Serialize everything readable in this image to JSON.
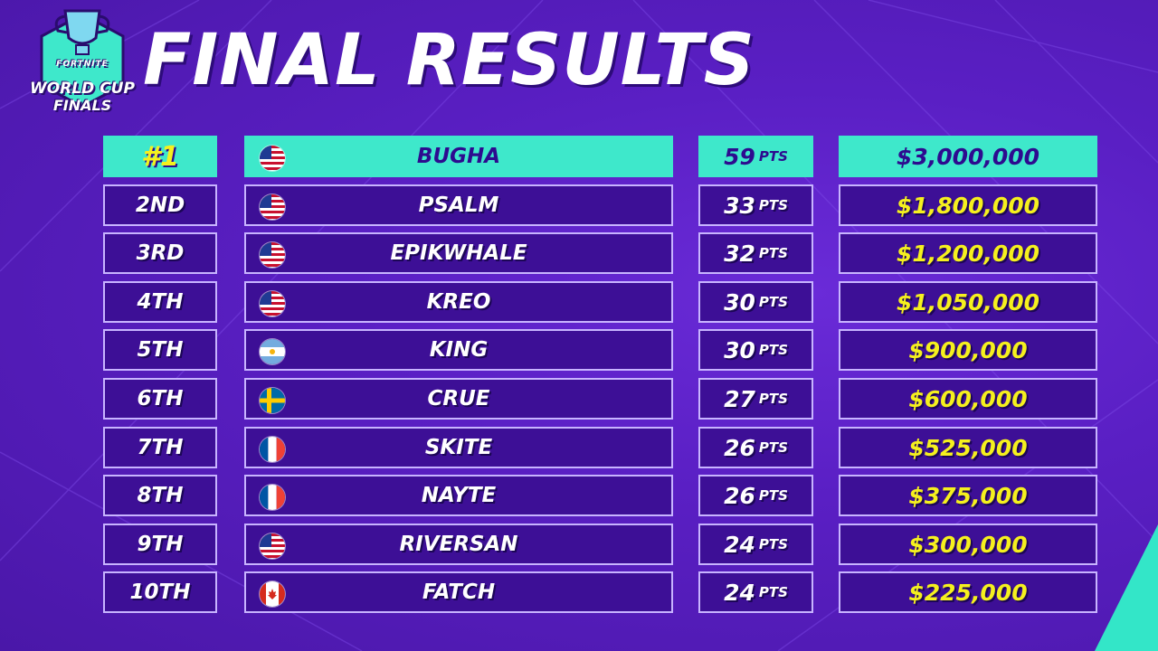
{
  "header": {
    "title": "FINAL RESULTS",
    "logo_top": "FORTNITE",
    "logo_line1": "WORLD CUP",
    "logo_line2": "FINALS"
  },
  "colors": {
    "background": "#5a1fc4",
    "highlight_row": "#3ee8cb",
    "prize_text": "#f5f01e",
    "cell_border": "#c8b4ff"
  },
  "results": [
    {
      "rank": "#1",
      "flag": "us-flag-icon",
      "player": "BUGHA",
      "points": "59",
      "unit": "PTS",
      "prize": "$3,000,000"
    },
    {
      "rank": "2ND",
      "flag": "us-flag-icon",
      "player": "PSALM",
      "points": "33",
      "unit": "PTS",
      "prize": "$1,800,000"
    },
    {
      "rank": "3RD",
      "flag": "us-flag-icon",
      "player": "EPIKWHALE",
      "points": "32",
      "unit": "PTS",
      "prize": "$1,200,000"
    },
    {
      "rank": "4TH",
      "flag": "us-flag-icon",
      "player": "KREO",
      "points": "30",
      "unit": "PTS",
      "prize": "$1,050,000"
    },
    {
      "rank": "5TH",
      "flag": "ar-flag-icon",
      "player": "KING",
      "points": "30",
      "unit": "PTS",
      "prize": "$900,000"
    },
    {
      "rank": "6TH",
      "flag": "se-flag-icon",
      "player": "CRUE",
      "points": "27",
      "unit": "PTS",
      "prize": "$600,000"
    },
    {
      "rank": "7TH",
      "flag": "fr-flag-icon",
      "player": "SKITE",
      "points": "26",
      "unit": "PTS",
      "prize": "$525,000"
    },
    {
      "rank": "8TH",
      "flag": "fr-flag-icon",
      "player": "NAYTE",
      "points": "26",
      "unit": "PTS",
      "prize": "$375,000"
    },
    {
      "rank": "9TH",
      "flag": "us-flag-icon",
      "player": "RIVERSAN",
      "points": "24",
      "unit": "PTS",
      "prize": "$300,000"
    },
    {
      "rank": "10TH",
      "flag": "ca-flag-icon",
      "player": "FATCH",
      "points": "24",
      "unit": "PTS",
      "prize": "$225,000"
    }
  ]
}
